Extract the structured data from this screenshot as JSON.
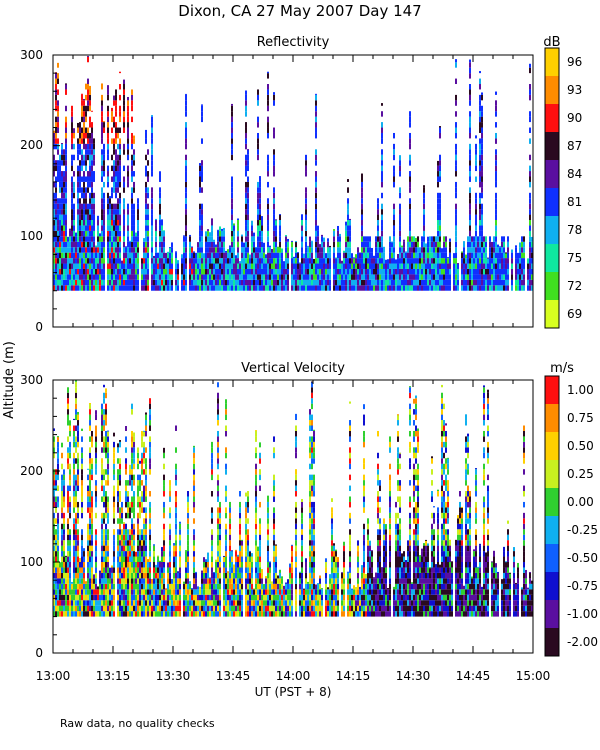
{
  "figure": {
    "title": "Dixon, CA 27 May 2007  Day 147",
    "ylabel": "Altitude (m)",
    "xlabel": "UT  (PST + 8)",
    "footnote": "Raw data, no quality checks",
    "x_ticks": [
      "13:00",
      "13:15",
      "13:30",
      "13:45",
      "14:00",
      "14:15",
      "14:30",
      "14:45",
      "15:00"
    ],
    "y_ticks": [
      "0",
      "100",
      "200",
      "300"
    ]
  },
  "chart_data": [
    {
      "type": "heatmap",
      "title": "Reflectivity",
      "xlabel": "UT  (PST + 8)",
      "ylabel": "Altitude (m)",
      "x_range": [
        "13:00",
        "15:00"
      ],
      "ylim": [
        0,
        300
      ],
      "data_altitude_range": [
        40,
        300
      ],
      "colorbar": {
        "unit": "dB",
        "labels": [
          "96",
          "93",
          "90",
          "87",
          "84",
          "81",
          "78",
          "75",
          "72",
          "69"
        ],
        "colors": [
          "#ffd000",
          "#ff8c00",
          "#ff1010",
          "#2a0a20",
          "#5a0fa0",
          "#1030ff",
          "#10b0f0",
          "#10e8a0",
          "#40e020",
          "#d8ff20"
        ]
      }
    },
    {
      "type": "heatmap",
      "title": "Vertical Velocity",
      "xlabel": "UT  (PST + 8)",
      "ylabel": "Altitude (m)",
      "x_range": [
        "13:00",
        "15:00"
      ],
      "ylim": [
        0,
        300
      ],
      "data_altitude_range": [
        40,
        300
      ],
      "colorbar": {
        "unit": "m/s",
        "labels": [
          "1.00",
          "0.75",
          "0.50",
          "0.25",
          "0.00",
          "-0.25",
          "-0.50",
          "-0.75",
          "-1.00",
          "-2.00"
        ],
        "colors": [
          "#ff1010",
          "#ff8c00",
          "#ffd000",
          "#c8f020",
          "#30d030",
          "#10b0f0",
          "#1060ff",
          "#1010d0",
          "#5a0fa0",
          "#2a0a20"
        ]
      }
    }
  ]
}
